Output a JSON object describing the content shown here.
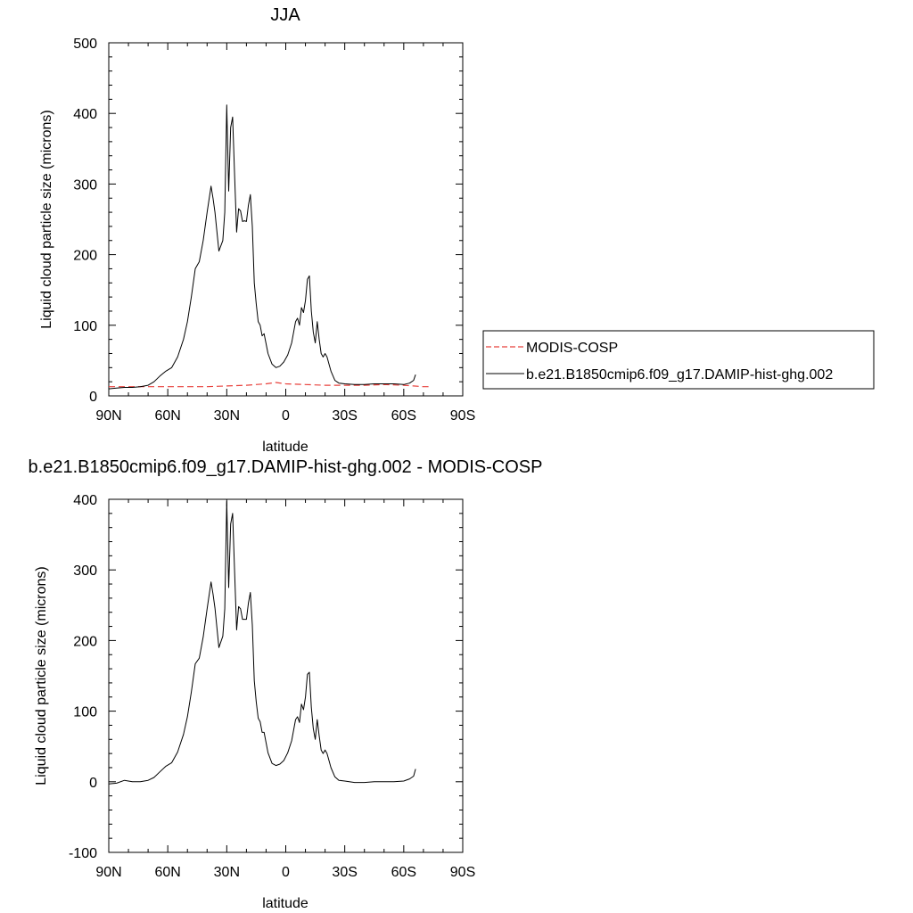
{
  "chart_data": [
    {
      "type": "line",
      "title": "JJA",
      "xlabel": "latitude",
      "ylabel": "Liquid cloud particle size (microns)",
      "xlim": [
        90,
        -90
      ],
      "ylim": [
        0,
        500
      ],
      "x_ticks": [
        90,
        60,
        30,
        0,
        -30,
        -60,
        -90
      ],
      "x_tick_labels": [
        "90N",
        "60N",
        "30N",
        "0",
        "30S",
        "60S",
        "90S"
      ],
      "y_ticks": [
        0,
        100,
        200,
        300,
        400,
        500
      ],
      "y_tick_labels": [
        "0",
        "100",
        "200",
        "300",
        "400",
        "500"
      ],
      "grid": false,
      "legend": {
        "placement": "right",
        "entries": [
          "MODIS-COSP",
          "b.e21.B1850cmip6.f09_g17.DAMIP-hist-ghg.002"
        ]
      },
      "series": [
        {
          "name": "MODIS-COSP",
          "color": "#e8413c",
          "style": "dashed",
          "x": [
            90,
            80,
            70,
            60,
            50,
            40,
            30,
            20,
            10,
            5,
            0,
            -10,
            -20,
            -30,
            -40,
            -50,
            -60,
            -65,
            -70,
            -74
          ],
          "y": [
            13,
            13,
            13,
            13,
            13,
            13,
            14,
            15,
            17,
            19,
            17,
            16,
            15,
            15,
            15,
            16,
            15,
            14,
            13,
            13
          ]
        },
        {
          "name": "b.e21.B1850cmip6.f09_g17.DAMIP-hist-ghg.002",
          "color": "#000000",
          "style": "solid",
          "x": [
            90,
            86,
            82,
            78,
            74,
            70,
            67,
            64,
            61,
            58,
            55,
            52,
            50,
            48,
            46,
            44,
            42,
            40,
            38,
            37,
            36,
            34,
            32,
            31,
            30,
            29,
            28,
            27,
            26,
            25,
            24,
            23,
            22,
            21,
            20,
            19,
            18,
            17,
            16,
            15,
            14,
            13,
            12,
            11,
            9,
            7,
            5,
            3,
            1,
            -1,
            -3,
            -5,
            -6,
            -7,
            -8,
            -9,
            -10,
            -11,
            -12,
            -13,
            -14,
            -15,
            -16,
            -17,
            -18,
            -19,
            -20,
            -21,
            -22,
            -23,
            -25,
            -27,
            -30,
            -35,
            -40,
            -45,
            -50,
            -55,
            -60,
            -63,
            -65,
            -66
          ],
          "y": [
            10,
            11,
            12,
            12,
            13,
            15,
            20,
            28,
            35,
            40,
            55,
            80,
            105,
            140,
            180,
            190,
            220,
            260,
            297,
            280,
            260,
            205,
            220,
            260,
            412,
            290,
            380,
            395,
            310,
            232,
            265,
            262,
            247,
            248,
            247,
            270,
            285,
            240,
            160,
            130,
            105,
            100,
            85,
            88,
            60,
            45,
            40,
            42,
            48,
            58,
            75,
            105,
            110,
            100,
            125,
            118,
            135,
            165,
            170,
            120,
            90,
            75,
            105,
            80,
            60,
            55,
            60,
            55,
            45,
            35,
            22,
            18,
            17,
            16,
            16,
            17,
            17,
            17,
            16,
            18,
            22,
            30
          ]
        }
      ]
    },
    {
      "type": "line",
      "title": "b.e21.B1850cmip6.f09_g17.DAMIP-hist-ghg.002 - MODIS-COSP",
      "xlabel": "latitude",
      "ylabel": "Liquid cloud particle size (microns)",
      "xlim": [
        90,
        -90
      ],
      "ylim": [
        -100,
        400
      ],
      "x_ticks": [
        90,
        60,
        30,
        0,
        -30,
        -60,
        -90
      ],
      "x_tick_labels": [
        "90N",
        "60N",
        "30N",
        "0",
        "30S",
        "60S",
        "90S"
      ],
      "y_ticks": [
        -100,
        0,
        100,
        200,
        300,
        400
      ],
      "y_tick_labels": [
        "-100",
        "0",
        "100",
        "200",
        "300",
        "400"
      ],
      "grid": false,
      "series": [
        {
          "color": "#000000",
          "style": "solid",
          "x": [
            90,
            86,
            82,
            78,
            74,
            70,
            67,
            64,
            61,
            58,
            55,
            52,
            50,
            48,
            46,
            44,
            42,
            40,
            38,
            37,
            36,
            34,
            32,
            31,
            30,
            29,
            28,
            27,
            26,
            25,
            24,
            23,
            22,
            21,
            20,
            19,
            18,
            17,
            16,
            15,
            14,
            13,
            12,
            11,
            9,
            7,
            5,
            3,
            1,
            -1,
            -3,
            -5,
            -6,
            -7,
            -8,
            -9,
            -10,
            -11,
            -12,
            -13,
            -14,
            -15,
            -16,
            -17,
            -18,
            -19,
            -20,
            -21,
            -22,
            -23,
            -25,
            -27,
            -30,
            -35,
            -40,
            -45,
            -50,
            -55,
            -60,
            -63,
            -65,
            -66
          ],
          "y": [
            -3,
            -2,
            2,
            0,
            0,
            2,
            6,
            14,
            22,
            27,
            42,
            67,
            92,
            127,
            167,
            175,
            205,
            245,
            283,
            266,
            246,
            190,
            206,
            245,
            397,
            275,
            365,
            380,
            295,
            215,
            248,
            245,
            230,
            230,
            230,
            253,
            268,
            222,
            143,
            113,
            90,
            85,
            70,
            70,
            41,
            26,
            23,
            25,
            30,
            41,
            58,
            88,
            92,
            84,
            110,
            102,
            120,
            152,
            155,
            105,
            75,
            60,
            88,
            65,
            45,
            40,
            45,
            40,
            30,
            20,
            7,
            2,
            1,
            -1,
            -1,
            0,
            0,
            0,
            1,
            4,
            8,
            18
          ]
        }
      ]
    }
  ]
}
